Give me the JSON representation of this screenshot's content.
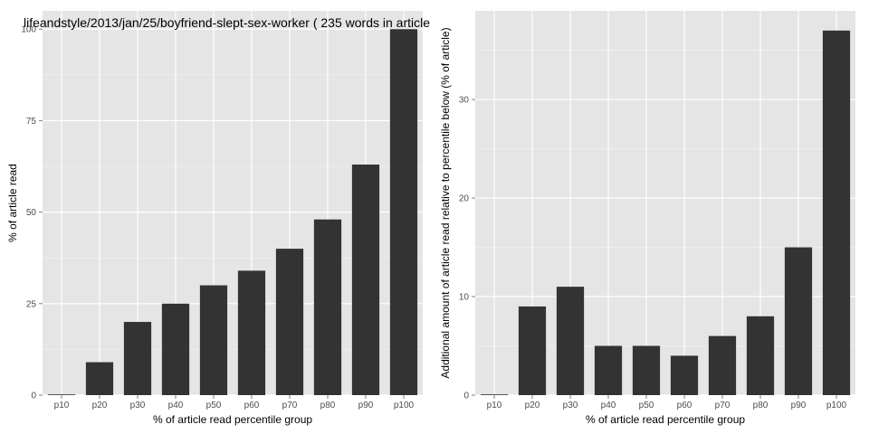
{
  "chart_data": [
    {
      "type": "bar",
      "title": "lifeandstyle/2013/jan/25/boyfriend-slept-sex-worker ( 235 words in article",
      "xlabel": "% of article read percentile group",
      "ylabel": "% of article read",
      "categories": [
        "p10",
        "p20",
        "p30",
        "p40",
        "p50",
        "p60",
        "p70",
        "p80",
        "p90",
        "p100"
      ],
      "values": [
        0,
        9,
        20,
        25,
        30,
        34,
        40,
        48,
        63,
        100
      ],
      "ylim": [
        0,
        105
      ],
      "yticks": [
        "0",
        "25",
        "50",
        "75",
        "100"
      ],
      "grid": true,
      "bar_color": "#333333",
      "panel_color": "#e5e5e5"
    },
    {
      "type": "bar",
      "title": "",
      "xlabel": "% of article read percentile group",
      "ylabel": "Additional amount of article read relative to percentile below (% of article)",
      "categories": [
        "p10",
        "p20",
        "p30",
        "p40",
        "p50",
        "p60",
        "p70",
        "p80",
        "p90",
        "p100"
      ],
      "values": [
        0,
        9,
        11,
        5,
        5,
        4,
        6,
        8,
        15,
        37
      ],
      "ylim": [
        0,
        39
      ],
      "yticks": [
        "0",
        "10",
        "20",
        "30"
      ],
      "grid": true,
      "bar_color": "#333333",
      "panel_color": "#e5e5e5"
    }
  ]
}
